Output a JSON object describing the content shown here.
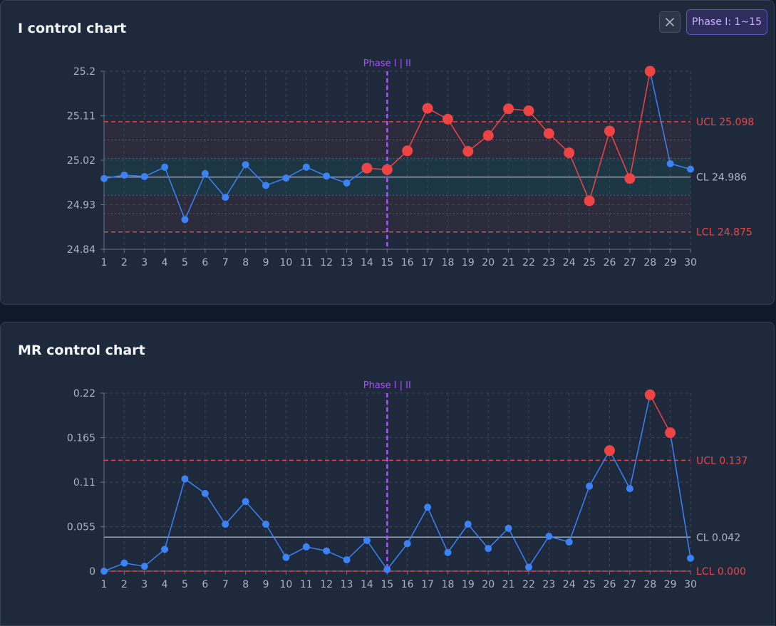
{
  "toolbar": {
    "close_icon": "close-icon",
    "phase_button_label": "Phase I: 1~15"
  },
  "colors": {
    "normal": "#3b82f6",
    "violation": "#ef4444",
    "center": "#94a3b8",
    "limit": "#ef4444",
    "phase_divider": "#a855f7",
    "grid": "#3b4658"
  },
  "chart_data": [
    {
      "type": "line",
      "title": "I control chart",
      "x": [
        1,
        2,
        3,
        4,
        5,
        6,
        7,
        8,
        9,
        10,
        11,
        12,
        13,
        14,
        15,
        16,
        17,
        18,
        19,
        20,
        21,
        22,
        23,
        24,
        25,
        26,
        27,
        28,
        29,
        30
      ],
      "values": [
        24.983,
        24.99,
        24.987,
        25.006,
        24.9,
        24.993,
        24.945,
        25.011,
        24.969,
        24.984,
        25.006,
        24.988,
        24.974,
        25.004,
        25.001,
        25.039,
        25.125,
        25.103,
        25.038,
        25.07,
        25.124,
        25.12,
        25.074,
        25.035,
        24.938,
        25.079,
        24.983,
        25.2,
        25.013,
        25.002
      ],
      "violations": [
        14,
        15,
        16,
        17,
        18,
        19,
        20,
        21,
        22,
        23,
        24,
        25,
        26,
        27,
        28
      ],
      "ylim": [
        24.84,
        25.2
      ],
      "yticks": [
        "24.84",
        "24.93",
        "25.02",
        "25.11",
        "25.2"
      ],
      "cl": 24.986,
      "ucl": 25.098,
      "lcl": 24.875,
      "cl_label": "CL 24.986",
      "ucl_label": "UCL 25.098",
      "lcl_label": "LCL 24.875",
      "zone_lines": [
        25.061,
        25.024,
        24.949,
        24.912
      ],
      "phase_divider_x": 15,
      "phase_label": "Phase I | II",
      "grid": true
    },
    {
      "type": "line",
      "title": "MR control chart",
      "x": [
        1,
        2,
        3,
        4,
        5,
        6,
        7,
        8,
        9,
        10,
        11,
        12,
        13,
        14,
        15,
        16,
        17,
        18,
        19,
        20,
        21,
        22,
        23,
        24,
        25,
        26,
        27,
        28,
        29,
        30
      ],
      "values": [
        0,
        0.01,
        0.006,
        0.027,
        0.114,
        0.096,
        0.058,
        0.086,
        0.058,
        0.017,
        0.03,
        0.025,
        0.014,
        0.038,
        0.002,
        0.034,
        0.079,
        0.023,
        0.058,
        0.028,
        0.053,
        0.005,
        0.043,
        0.036,
        0.105,
        0.149,
        0.102,
        0.218,
        0.171,
        0.016
      ],
      "violations": [
        26,
        28,
        29
      ],
      "ylim": [
        0,
        0.22
      ],
      "yticks": [
        "0",
        "0.055",
        "0.11",
        "0.165",
        "0.22"
      ],
      "cl": 0.042,
      "ucl": 0.137,
      "lcl": 0.0,
      "cl_label": "CL 0.042",
      "ucl_label": "UCL 0.137",
      "lcl_label": "LCL 0.000",
      "phase_divider_x": 15,
      "phase_label": "Phase I | II",
      "grid": true
    }
  ]
}
